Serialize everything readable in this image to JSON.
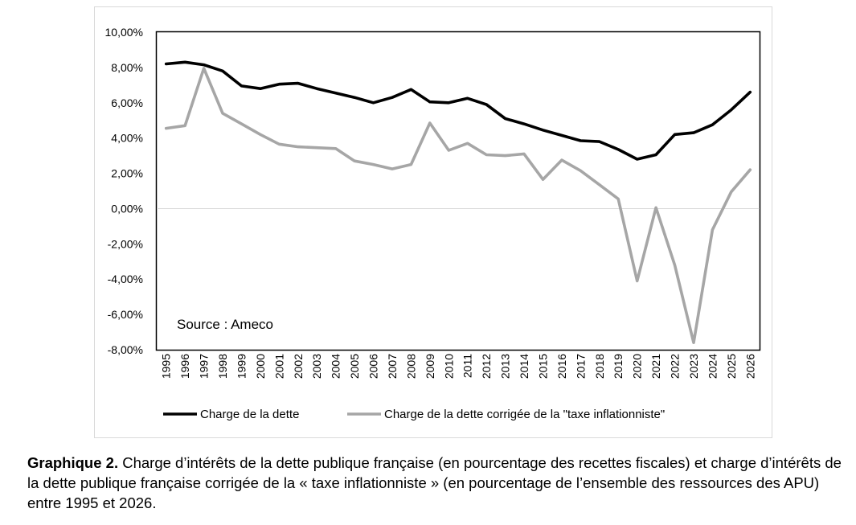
{
  "chart_data": {
    "type": "line",
    "x": [
      "1995",
      "1996",
      "1997",
      "1998",
      "1999",
      "2000",
      "2001",
      "2002",
      "2003",
      "2004",
      "2005",
      "2006",
      "2007",
      "2008",
      "2009",
      "2010",
      "2011",
      "2012",
      "2013",
      "2014",
      "2015",
      "2016",
      "2017",
      "2018",
      "2019",
      "2020",
      "2021",
      "2022",
      "2023",
      "2024",
      "2025",
      "2026"
    ],
    "series": [
      {
        "name": "Charge de la dette",
        "color": "#000000",
        "values": [
          8.2,
          8.3,
          8.15,
          7.8,
          6.95,
          6.8,
          7.05,
          7.1,
          6.8,
          6.55,
          6.3,
          6.0,
          6.3,
          6.75,
          6.05,
          6.0,
          6.25,
          5.9,
          5.1,
          4.8,
          4.45,
          4.15,
          3.85,
          3.8,
          3.35,
          2.8,
          3.05,
          4.2,
          4.3,
          4.75,
          5.6,
          6.6
        ]
      },
      {
        "name": "Charge de la dette corrigée de la \"taxe inflationniste\"",
        "color": "#a6a6a6",
        "values": [
          4.55,
          4.7,
          7.95,
          5.4,
          4.8,
          4.2,
          3.65,
          3.5,
          3.45,
          3.4,
          2.7,
          2.5,
          2.25,
          2.5,
          4.85,
          3.3,
          3.7,
          3.05,
          3.0,
          3.1,
          1.65,
          2.75,
          2.15,
          1.35,
          0.55,
          -4.1,
          0.05,
          -3.2,
          -7.6,
          -1.2,
          0.95,
          2.2
        ]
      }
    ],
    "y_ticks": [
      "10,00%",
      "8,00%",
      "6,00%",
      "4,00%",
      "2,00%",
      "0,00%",
      "-2,00%",
      "-4,00%",
      "-6,00%",
      "-8,00%"
    ],
    "ylim": [
      -8,
      10
    ],
    "legend_position": "bottom",
    "annotation": "Source : Ameco",
    "grid": "zero line only"
  },
  "caption": {
    "bold": "Graphique 2.",
    "text": " Charge d’intérêts de la dette publique française (en pourcentage des recettes fiscales) et charge d’intérêts de la dette publique française corrigée de la « taxe inflationniste » (en pourcentage de l’ensemble des ressources des APU) entre 1995 et 2026."
  }
}
